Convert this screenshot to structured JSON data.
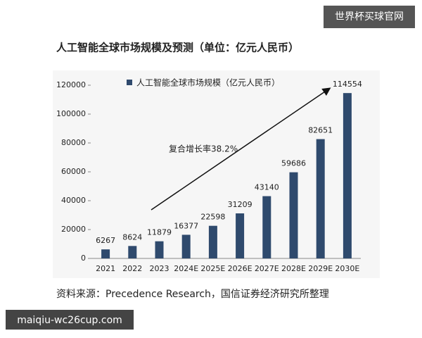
{
  "badge": "世界杯买球官网",
  "source": "资料来源：Precedence Research，国信证券经济研究所整理",
  "watermark": "maiqiu-wc26cup.com",
  "chart_data": {
    "type": "bar",
    "title": "人工智能全球市场规模及预测（单位：亿元人民币）",
    "annotation": "复合增长率38.2%",
    "categories": [
      "2021",
      "2022",
      "2023",
      "2024E",
      "2025E",
      "2026E",
      "2027E",
      "2028E",
      "2029E",
      "2030E"
    ],
    "series": [
      {
        "name": "人工智能全球市场规模（亿元人民币）",
        "color": "#2f4a6d",
        "values": [
          6267,
          8624,
          11879,
          16377,
          22598,
          31209,
          43140,
          59686,
          82651,
          114554
        ]
      }
    ],
    "ylim": [
      0,
      125000
    ],
    "yticks": [
      0,
      20000,
      40000,
      60000,
      80000,
      100000,
      120000
    ],
    "legend": "top"
  }
}
